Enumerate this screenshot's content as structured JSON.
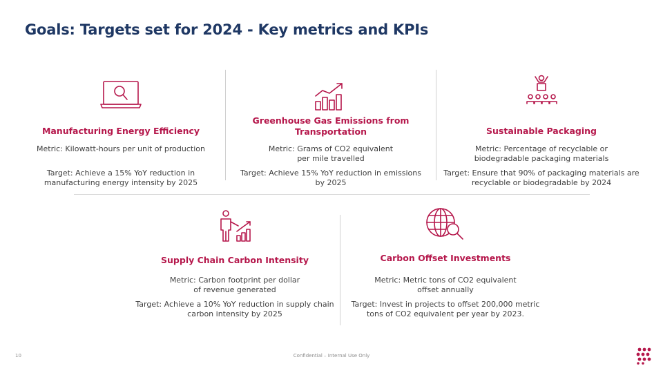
{
  "page": {
    "title": "Goals: Targets set for 2024 - Key metrics and KPIs",
    "slide_number": "10",
    "confidential": "Confidential – Internal Use Only",
    "accent_color": "#b5174b",
    "title_color": "#1f3864"
  },
  "cards": [
    {
      "icon": "laptop-search-icon",
      "heading": [
        "Manufacturing Energy Efficiency"
      ],
      "metric": [
        "Metric: Kilowatt-hours per unit of production"
      ],
      "target": [
        "Target: Achieve a 15% YoY reduction in",
        "manufacturing energy intensity by 2025"
      ]
    },
    {
      "icon": "bar-chart-growth-icon",
      "heading": [
        "Greenhouse Gas Emissions from",
        "Transportation"
      ],
      "metric": [
        "Metric: Grams of CO2 equivalent",
        "per mile travelled"
      ],
      "target": [
        "Target: Achieve 15% YoY reduction in emissions",
        "by 2025"
      ]
    },
    {
      "icon": "team-leader-icon",
      "heading": [
        "Sustainable Packaging"
      ],
      "metric": [
        "Metric: Percentage of recyclable or",
        "biodegradable packaging materials"
      ],
      "target": [
        "Target: Ensure that 90% of packaging materials are",
        "recyclable or biodegradable by 2024"
      ]
    },
    {
      "icon": "presenter-chart-icon",
      "heading": [
        "Supply Chain Carbon Intensity"
      ],
      "metric": [
        "Metric: Carbon footprint per dollar",
        "of revenue generated"
      ],
      "target": [
        "Target: Achieve a 10% YoY reduction in supply chain",
        "carbon intensity by 2025"
      ]
    },
    {
      "icon": "globe-search-icon",
      "heading": [
        "Carbon Offset Investments"
      ],
      "metric": [
        "Metric: Metric tons of CO2 equivalent",
        "offset annually"
      ],
      "target": [
        "Target: Invest in projects to offset 200,000 metric",
        "tons of CO2 equivalent per year by 2023."
      ]
    }
  ]
}
